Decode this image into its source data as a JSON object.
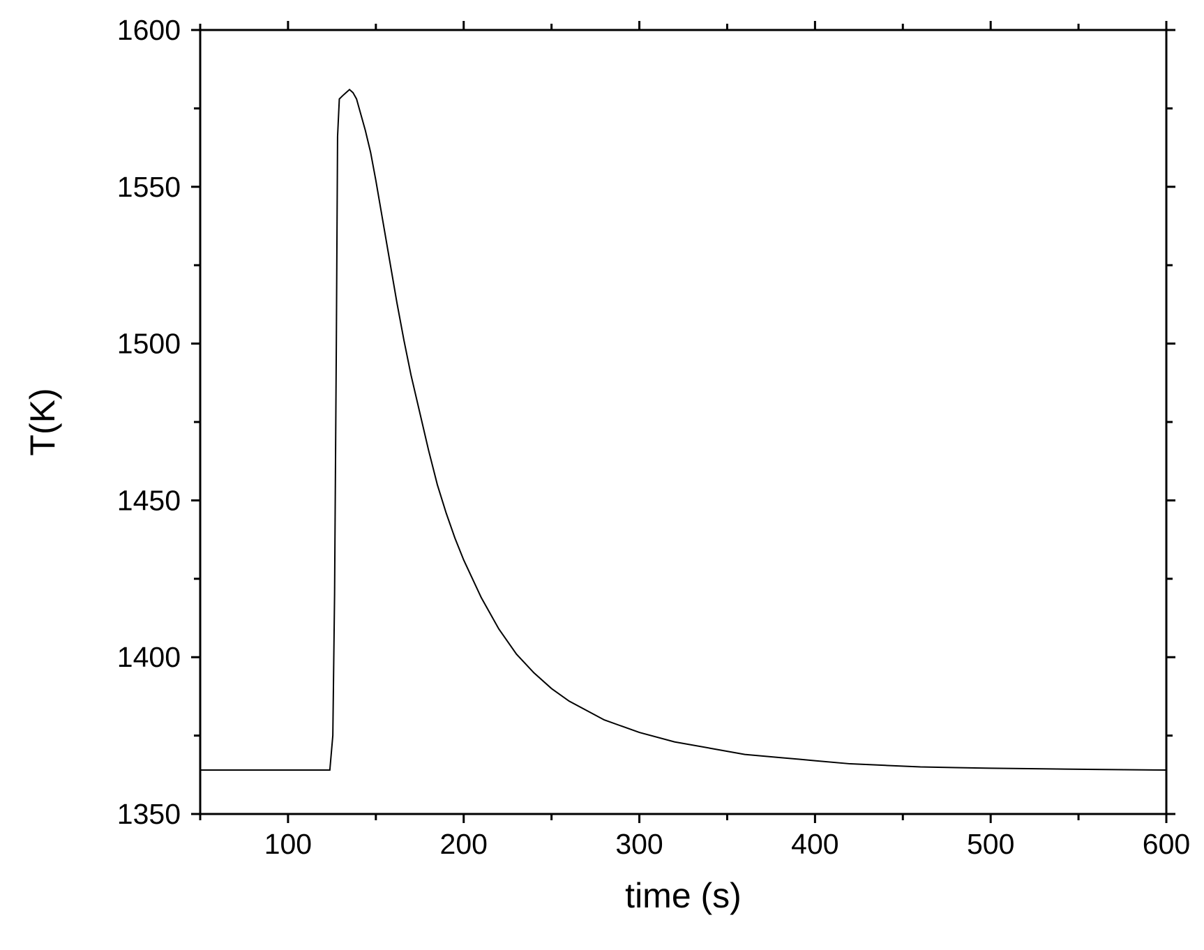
{
  "chart_data": {
    "type": "line",
    "title": "",
    "xlabel": "time (s)",
    "ylabel": "T(K)",
    "xlim": [
      50,
      600
    ],
    "ylim": [
      1350,
      1600
    ],
    "x_major_ticks": [
      100,
      200,
      300,
      400,
      500,
      600
    ],
    "x_minor_ticks": [
      50,
      150,
      250,
      350,
      450,
      550
    ],
    "y_major_ticks": [
      1350,
      1400,
      1450,
      1500,
      1550,
      1600
    ],
    "y_minor_ticks": [
      1375,
      1425,
      1475,
      1525,
      1575
    ],
    "x_tick_labels": [
      "100",
      "200",
      "300",
      "400",
      "500",
      "600"
    ],
    "y_tick_labels": [
      "1350",
      "1400",
      "1450",
      "1500",
      "1550",
      "1600"
    ],
    "grid": false,
    "line_color": "#000000",
    "series": [
      {
        "x": [
          50,
          100,
          123.8,
          125.5,
          126.5,
          127.5,
          128.2,
          129.2,
          131,
          133,
          135,
          137,
          139,
          141,
          144,
          147,
          150,
          154,
          158,
          162,
          166,
          170,
          175,
          180,
          185,
          190,
          195,
          200,
          210,
          220,
          230,
          240,
          250,
          260,
          270,
          280,
          290,
          300,
          320,
          340,
          360,
          380,
          400,
          420,
          440,
          460,
          480,
          500,
          530,
          560,
          600
        ],
        "y": [
          1364,
          1364,
          1364,
          1375,
          1420,
          1500,
          1566,
          1578,
          1579,
          1580,
          1581,
          1580,
          1578,
          1574,
          1568,
          1561,
          1552,
          1539,
          1526,
          1513,
          1501,
          1490,
          1478,
          1466,
          1455,
          1446,
          1438,
          1431,
          1419,
          1409,
          1401,
          1395,
          1390,
          1386,
          1383,
          1380,
          1378,
          1376,
          1373,
          1371,
          1369,
          1368,
          1367,
          1366,
          1365.5,
          1365,
          1364.8,
          1364.6,
          1364.4,
          1364.2,
          1364
        ]
      }
    ]
  }
}
